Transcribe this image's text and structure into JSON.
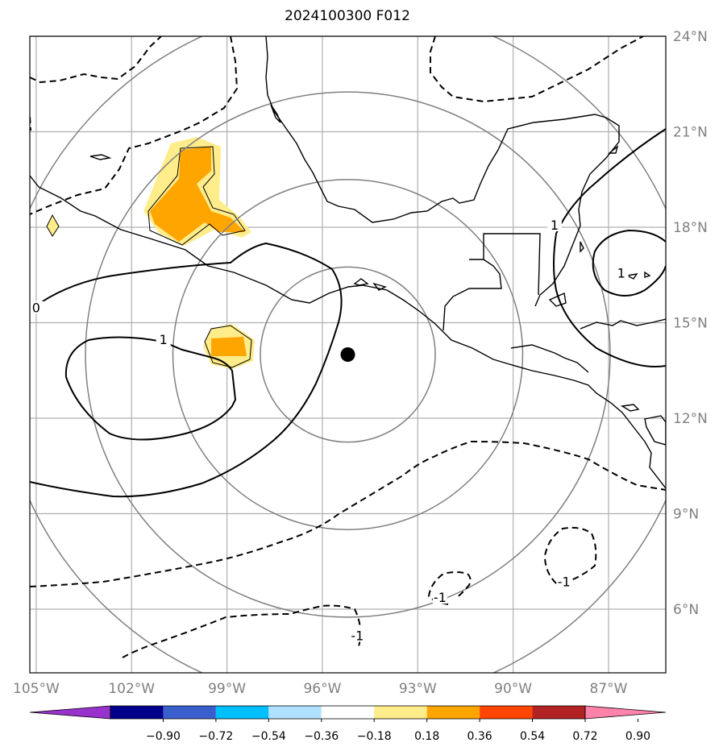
{
  "title": "2024100300 F012",
  "map": {
    "lon_range": [
      -105.2,
      -85.2
    ],
    "lat_range": [
      4.0,
      24.0
    ],
    "lon_ticks": [
      {
        "lon": -105,
        "label": "105°W"
      },
      {
        "lon": -102,
        "label": "102°W"
      },
      {
        "lon": -99,
        "label": "99°W"
      },
      {
        "lon": -96,
        "label": "96°W"
      },
      {
        "lon": -93,
        "label": "93°W"
      },
      {
        "lon": -90,
        "label": "90°W"
      },
      {
        "lon": -87,
        "label": "87°W"
      }
    ],
    "lat_ticks": [
      {
        "lat": 24,
        "label": "24°N"
      },
      {
        "lat": 21,
        "label": "21°N"
      },
      {
        "lat": 18,
        "label": "18°N"
      },
      {
        "lat": 15,
        "label": "15°N"
      },
      {
        "lat": 12,
        "label": "12°N"
      },
      {
        "lat": 9,
        "label": "9°N"
      },
      {
        "lat": 6,
        "label": "6°N"
      }
    ],
    "gridlines": true,
    "center_point": {
      "lon": -95.2,
      "lat": 14.0
    },
    "range_ring_radii_deg": [
      2.75,
      5.5,
      8.25,
      11.0
    ],
    "contour_labels": [
      {
        "text": "0",
        "lon": -105.0,
        "lat": 15.4
      },
      {
        "text": "1",
        "lon": -101.0,
        "lat": 14.4
      },
      {
        "text": "1",
        "lon": -86.6,
        "lat": 16.5
      },
      {
        "text": "1",
        "lon": -88.7,
        "lat": 18.0
      },
      {
        "text": "-1",
        "lon": -88.4,
        "lat": 6.8
      },
      {
        "text": "-1",
        "lon": -92.3,
        "lat": 6.3
      },
      {
        "text": "-1",
        "lon": -94.9,
        "lat": 5.1
      }
    ]
  },
  "colorbar": {
    "colors": [
      "#9932cc",
      "#00008b",
      "#3a5fcd",
      "#00bfff",
      "#b0e2ff",
      "#ffffff",
      "#ffec8b",
      "#ffa500",
      "#ff4500",
      "#b22222",
      "#ff82ab"
    ],
    "labels": [
      "−0.90",
      "−0.72",
      "−0.54",
      "−0.36",
      "−0.18",
      "0.18",
      "0.36",
      "0.54",
      "0.72",
      "0.90"
    ]
  }
}
